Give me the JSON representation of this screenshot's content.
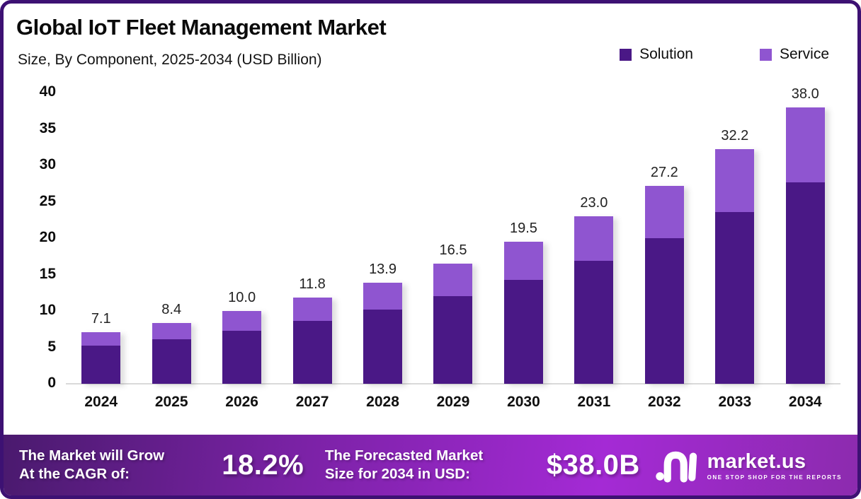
{
  "title": "Global IoT Fleet Management Market",
  "subtitle": "Size, By Component, 2025-2034 (USD Billion)",
  "colors": {
    "solution": "#4A1886",
    "service": "#8F55D0",
    "frame_border": "#3D1173",
    "footer_gradient_start": "#4A1A6E",
    "footer_gradient_mid": "#A42AD5",
    "footer_gradient_end": "#8C2BAE",
    "baseline": "#D9D9D9"
  },
  "legend": [
    {
      "label": "Solution",
      "color": "#4A1886"
    },
    {
      "label": "Service",
      "color": "#8F55D0"
    }
  ],
  "chart_data": {
    "type": "bar",
    "stacked": true,
    "categories": [
      "2024",
      "2025",
      "2026",
      "2027",
      "2028",
      "2029",
      "2030",
      "2031",
      "2032",
      "2033",
      "2034"
    ],
    "series": [
      {
        "name": "Solution",
        "color": "#4A1886",
        "values": [
          5.2,
          6.1,
          7.3,
          8.6,
          10.2,
          12.0,
          14.3,
          16.9,
          20.0,
          23.6,
          27.7
        ]
      },
      {
        "name": "Service",
        "color": "#8F55D0",
        "values": [
          1.9,
          2.3,
          2.7,
          3.2,
          3.7,
          4.5,
          5.2,
          6.1,
          7.2,
          8.6,
          10.3
        ]
      }
    ],
    "totals": [
      7.1,
      8.4,
      10.0,
      11.8,
      13.9,
      16.5,
      19.5,
      23.0,
      27.2,
      32.2,
      38.0
    ],
    "title": "Global IoT Fleet Management Market",
    "subtitle": "Size, By Component, 2025-2034 (USD Billion)",
    "xlabel": "",
    "ylabel": "",
    "ylim": [
      0,
      40
    ],
    "yticks": [
      0,
      5,
      10,
      15,
      20,
      25,
      30,
      35,
      40
    ],
    "grid": false,
    "legend_position": "top-right"
  },
  "footer": {
    "cagr_label": "The Market will Grow\nAt the CAGR of:",
    "cagr_value": "18.2%",
    "forecast_label": "The Forecasted Market\nSize for 2034 in USD:",
    "forecast_value": "$38.0B",
    "brand": "market.us",
    "brand_tagline": "ONE STOP SHOP FOR THE REPORTS"
  }
}
